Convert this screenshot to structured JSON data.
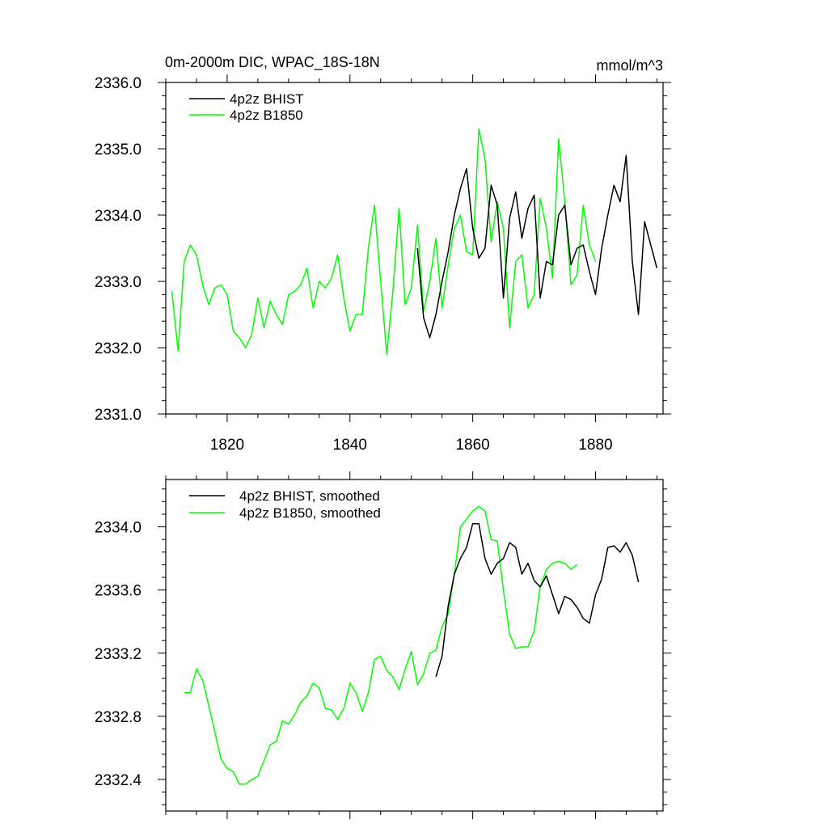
{
  "chart_data": [
    {
      "type": "line",
      "title": "0m-2000m DIC, WPAC_18S-18N",
      "units": "mmol/m^3",
      "xlim": [
        1810,
        1891
      ],
      "ylim": [
        2331.0,
        2336.0
      ],
      "x_ticks": [
        1820,
        1840,
        1860,
        1880
      ],
      "x_tick_labels": [
        "1820",
        "1840",
        "1860",
        "1880"
      ],
      "y_ticks": [
        2331.0,
        2332.0,
        2333.0,
        2334.0,
        2335.0,
        2336.0
      ],
      "y_tick_labels": [
        "2331.0",
        "2332.0",
        "2333.0",
        "2334.0",
        "2335.0",
        "2336.0"
      ],
      "legend_position": "top-left",
      "series": [
        {
          "name": "4p2z BHIST",
          "color": "#000000",
          "x": [
            1851,
            1852,
            1853,
            1854,
            1855,
            1856,
            1857,
            1858,
            1859,
            1860,
            1861,
            1862,
            1863,
            1864,
            1865,
            1866,
            1867,
            1868,
            1869,
            1870,
            1871,
            1872,
            1873,
            1874,
            1875,
            1876,
            1877,
            1878,
            1879,
            1880,
            1881,
            1882,
            1883,
            1884,
            1885,
            1886,
            1887,
            1888,
            1889,
            1890
          ],
          "values": [
            2333.5,
            2332.45,
            2332.15,
            2332.5,
            2333.0,
            2333.45,
            2334.0,
            2334.4,
            2334.7,
            2333.8,
            2333.35,
            2333.5,
            2334.45,
            2334.15,
            2332.75,
            2333.95,
            2334.35,
            2333.65,
            2334.1,
            2334.3,
            2332.75,
            2333.3,
            2333.25,
            2334.0,
            2334.15,
            2333.25,
            2333.5,
            2333.55,
            2333.15,
            2332.8,
            2333.5,
            2334.0,
            2334.45,
            2334.2,
            2334.9,
            2333.3,
            2332.5,
            2333.9,
            2333.55,
            2333.2
          ]
        },
        {
          "name": "4p2z B1850",
          "color": "#00ff00",
          "x": [
            1811,
            1812,
            1813,
            1814,
            1815,
            1816,
            1817,
            1818,
            1819,
            1820,
            1821,
            1822,
            1823,
            1824,
            1825,
            1826,
            1827,
            1828,
            1829,
            1830,
            1831,
            1832,
            1833,
            1834,
            1835,
            1836,
            1837,
            1838,
            1839,
            1840,
            1841,
            1842,
            1843,
            1844,
            1845,
            1846,
            1847,
            1848,
            1849,
            1850,
            1851,
            1852,
            1853,
            1854,
            1855,
            1856,
            1857,
            1858,
            1859,
            1860,
            1861,
            1862,
            1863,
            1864,
            1865,
            1866,
            1867,
            1868,
            1869,
            1870,
            1871,
            1872,
            1873,
            1874,
            1875,
            1876,
            1877,
            1878,
            1879,
            1880
          ],
          "values": [
            2332.85,
            2331.95,
            2333.3,
            2333.55,
            2333.4,
            2332.95,
            2332.65,
            2332.9,
            2332.95,
            2332.8,
            2332.25,
            2332.15,
            2332.0,
            2332.2,
            2332.75,
            2332.3,
            2332.7,
            2332.5,
            2332.35,
            2332.8,
            2332.85,
            2332.95,
            2333.2,
            2332.6,
            2333.0,
            2332.9,
            2333.05,
            2333.4,
            2332.75,
            2332.25,
            2332.5,
            2332.5,
            2333.5,
            2334.15,
            2333.0,
            2331.9,
            2332.85,
            2334.1,
            2332.65,
            2332.9,
            2333.85,
            2332.55,
            2333.0,
            2333.65,
            2332.6,
            2333.25,
            2333.8,
            2334.0,
            2333.45,
            2333.4,
            2335.3,
            2334.85,
            2333.6,
            2334.2,
            2333.8,
            2332.3,
            2333.3,
            2333.4,
            2332.6,
            2332.8,
            2334.25,
            2333.8,
            2333.05,
            2335.15,
            2334.2,
            2332.95,
            2333.1,
            2334.15,
            2333.55,
            2333.3
          ]
        }
      ]
    },
    {
      "type": "line",
      "xlim": [
        1810,
        1891
      ],
      "ylim": [
        2332.2,
        2334.3
      ],
      "x_ticks": [
        1820,
        1840,
        1860,
        1880
      ],
      "y_ticks": [
        2332.4,
        2332.8,
        2333.2,
        2333.6,
        2334.0
      ],
      "y_tick_labels": [
        "2332.4",
        "2332.8",
        "2333.2",
        "2333.6",
        "2334.0"
      ],
      "legend_position": "top-left",
      "series": [
        {
          "name": "4p2z BHIST, smoothed",
          "color": "#000000",
          "x": [
            1854,
            1855,
            1856,
            1857,
            1858,
            1859,
            1860,
            1861,
            1862,
            1863,
            1864,
            1865,
            1866,
            1867,
            1868,
            1869,
            1870,
            1871,
            1872,
            1873,
            1874,
            1875,
            1876,
            1877,
            1878,
            1879,
            1880,
            1881,
            1882,
            1883,
            1884,
            1885,
            1886,
            1887
          ],
          "values": [
            2333.05,
            2333.18,
            2333.5,
            2333.7,
            2333.8,
            2333.87,
            2334.02,
            2334.02,
            2333.8,
            2333.7,
            2333.77,
            2333.8,
            2333.9,
            2333.87,
            2333.7,
            2333.77,
            2333.66,
            2333.62,
            2333.69,
            2333.57,
            2333.45,
            2333.56,
            2333.54,
            2333.49,
            2333.42,
            2333.39,
            2333.57,
            2333.67,
            2333.87,
            2333.88,
            2333.84,
            2333.9,
            2333.82,
            2333.65
          ]
        },
        {
          "name": "4p2z B1850, smoothed",
          "color": "#00ff00",
          "x": [
            1813,
            1814,
            1815,
            1816,
            1817,
            1818,
            1819,
            1820,
            1821,
            1822,
            1823,
            1824,
            1825,
            1826,
            1827,
            1828,
            1829,
            1830,
            1831,
            1832,
            1833,
            1834,
            1835,
            1836,
            1837,
            1838,
            1839,
            1840,
            1841,
            1842,
            1843,
            1844,
            1845,
            1846,
            1847,
            1848,
            1849,
            1850,
            1851,
            1852,
            1853,
            1854,
            1855,
            1856,
            1857,
            1858,
            1859,
            1860,
            1861,
            1862,
            1863,
            1864,
            1865,
            1866,
            1867,
            1868,
            1869,
            1870,
            1871,
            1872,
            1873,
            1874,
            1875,
            1876,
            1877
          ],
          "values": [
            2332.95,
            2332.95,
            2333.1,
            2333.03,
            2332.87,
            2332.7,
            2332.53,
            2332.47,
            2332.45,
            2332.37,
            2332.37,
            2332.4,
            2332.42,
            2332.52,
            2332.62,
            2332.64,
            2332.77,
            2332.75,
            2332.81,
            2332.89,
            2332.93,
            2333.01,
            2332.98,
            2332.85,
            2332.84,
            2332.78,
            2332.85,
            2333.01,
            2332.95,
            2332.83,
            2332.95,
            2333.16,
            2333.18,
            2333.09,
            2333.05,
            2332.97,
            2333.1,
            2333.21,
            2333.0,
            2333.07,
            2333.2,
            2333.22,
            2333.37,
            2333.45,
            2333.7,
            2334.0,
            2334.05,
            2334.1,
            2334.13,
            2334.1,
            2333.92,
            2333.91,
            2333.6,
            2333.32,
            2333.23,
            2333.24,
            2333.24,
            2333.34,
            2333.62,
            2333.73,
            2333.77,
            2333.78,
            2333.77,
            2333.73,
            2333.76
          ]
        }
      ]
    }
  ]
}
